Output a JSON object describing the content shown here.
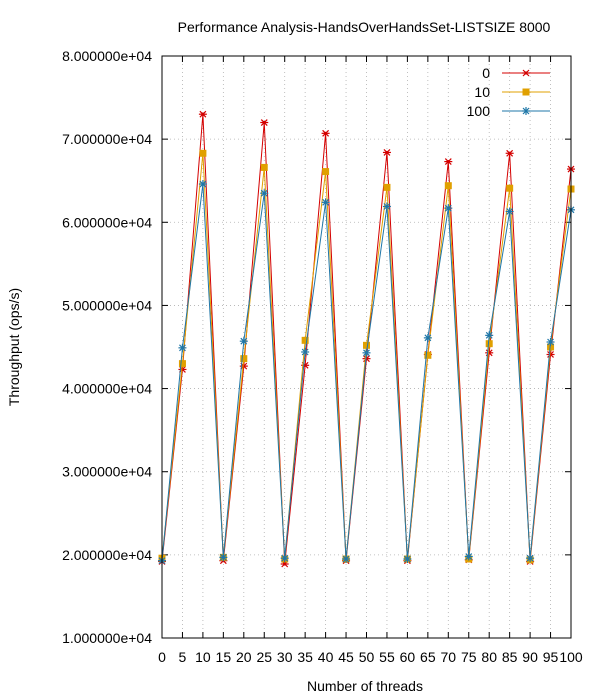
{
  "chart_data": {
    "type": "line",
    "title": "Performance Analysis-HandsOverHandsSet-LISTSIZE 8000",
    "xlabel": "Number of threads",
    "ylabel": "Throughput (ops/s)",
    "xlim": [
      0,
      100
    ],
    "ylim": [
      10000,
      80000
    ],
    "x_ticks": [
      "0",
      "5",
      "10",
      "15",
      "20",
      "25",
      "30",
      "35",
      "40",
      "45",
      "50",
      "55",
      "60",
      "65",
      "70",
      "75",
      "80",
      "85",
      "90",
      "95",
      "100"
    ],
    "y_ticks": [
      "1.000000e+04",
      "2.000000e+04",
      "3.000000e+04",
      "4.000000e+04",
      "5.000000e+04",
      "6.000000e+04",
      "7.000000e+04",
      "8.000000e+04"
    ],
    "grid": true,
    "legend_position": "top-right",
    "x": [
      0,
      5,
      10,
      15,
      20,
      25,
      30,
      35,
      40,
      45,
      50,
      55,
      60,
      65,
      70,
      75,
      80,
      85,
      90,
      95,
      100
    ],
    "series": [
      {
        "name": "0",
        "color": "#d40000",
        "marker": "star",
        "values": [
          19200,
          42300,
          73000,
          19300,
          42700,
          72000,
          18900,
          42800,
          70700,
          19300,
          43600,
          68400,
          19300,
          44100,
          67300,
          19400,
          44300,
          68300,
          19200,
          44100,
          66400
        ]
      },
      {
        "name": "10",
        "color": "#e0a000",
        "marker": "square",
        "values": [
          19600,
          43000,
          68300,
          19700,
          43600,
          66600,
          19500,
          45800,
          66100,
          19500,
          45200,
          64200,
          19500,
          44000,
          64400,
          19500,
          45400,
          64100,
          19400,
          45000,
          64000
        ]
      },
      {
        "name": "100",
        "color": "#1f77a8",
        "marker": "asterisk",
        "values": [
          19300,
          44900,
          64600,
          19700,
          45700,
          63500,
          19600,
          44400,
          62400,
          19500,
          44300,
          61900,
          19500,
          46100,
          61700,
          19800,
          46400,
          61300,
          19600,
          45600,
          61500
        ]
      }
    ]
  }
}
